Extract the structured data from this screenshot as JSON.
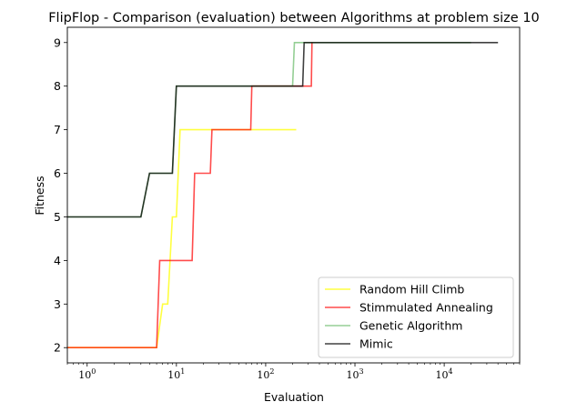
{
  "chart_data": {
    "type": "line",
    "title": "FlipFlop - Comparison (evaluation) between Algorithms at problem size 10",
    "xlabel": "Evaluation",
    "ylabel": "Fitness",
    "xscale": "log",
    "xlim": [
      0.6,
      70000
    ],
    "ylim": [
      1.65,
      9.35
    ],
    "xticks": [
      {
        "value": 1,
        "base": "10",
        "exp": "0"
      },
      {
        "value": 10,
        "base": "10",
        "exp": "1"
      },
      {
        "value": 100,
        "base": "10",
        "exp": "2"
      },
      {
        "value": 1000,
        "base": "10",
        "exp": "3"
      },
      {
        "value": 10000,
        "base": "10",
        "exp": "4"
      }
    ],
    "yticks": [
      2,
      3,
      4,
      5,
      6,
      7,
      8,
      9
    ],
    "grid": false,
    "legend": "lower-right",
    "series": [
      {
        "name": "Random Hill Climb",
        "color": "#ffff00",
        "opacity": 0.75,
        "x": [
          0.6,
          6,
          7,
          8,
          9,
          10,
          11,
          220
        ],
        "y": [
          2,
          2,
          3,
          3,
          5,
          5,
          7,
          7
        ]
      },
      {
        "name": "Stimmulated Annealing",
        "color": "#ff0000",
        "opacity": 0.7,
        "x": [
          0.6,
          6,
          6.5,
          15,
          16,
          24,
          25,
          68,
          70,
          325,
          330
        ],
        "y": [
          2,
          2,
          4,
          4,
          6,
          6,
          7,
          7,
          8,
          8,
          9
        ]
      },
      {
        "name": "Genetic Algorithm",
        "color": "#2ca02c",
        "opacity": 0.5,
        "x": [
          0.6,
          4,
          5,
          9,
          10,
          200,
          210,
          20000
        ],
        "y": [
          5,
          5,
          6,
          6,
          8,
          8,
          9,
          9
        ]
      },
      {
        "name": "Mimic",
        "color": "#000000",
        "opacity": 0.75,
        "x": [
          0.6,
          4,
          5,
          9,
          10,
          260,
          270,
          40000
        ],
        "y": [
          5,
          5,
          6,
          6,
          8,
          8,
          9,
          9
        ]
      }
    ]
  }
}
